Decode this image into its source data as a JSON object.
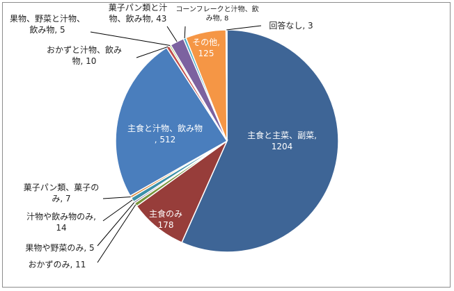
{
  "chart_data": {
    "type": "pie",
    "title": "",
    "categories": [
      "主食と主菜、副菜",
      "主食のみ",
      "おかずのみ",
      "果物や野菜のみ",
      "汁物や飲み物のみ",
      "菓子パン類、菓子のみ",
      "主食と汁物、飲み物",
      "おかずと汁物、飲み物",
      "果物、野菜と汁物、飲み物",
      "菓子パン類と汁物、飲み物",
      "コーンフレークと汁物、飲み物",
      "その他",
      "回答なし"
    ],
    "values": [
      1204,
      178,
      11,
      5,
      14,
      7,
      512,
      10,
      5,
      43,
      8,
      125,
      3
    ],
    "colors": [
      "#3e6596",
      "#973d3a",
      "#78953c",
      "#624b7e",
      "#3b90a8",
      "#d8863a",
      "#4a7ebd",
      "#c04f4c",
      "#98b957",
      "#7c62a0",
      "#4babc6",
      "#f59645",
      "#8aa8d4"
    ],
    "data_labels": [
      {
        "lines": [
          "主食と主菜、副菜,",
          "1204"
        ]
      },
      {
        "lines": [
          "主食のみ",
          "178"
        ]
      },
      {
        "lines": [
          "おかずのみ, 11"
        ]
      },
      {
        "lines": [
          "果物や野菜のみ, 5"
        ]
      },
      {
        "lines": [
          "汁物や飲み物のみ,",
          "14"
        ]
      },
      {
        "lines": [
          "菓子パン類、菓子の",
          "み, 7"
        ]
      },
      {
        "lines": [
          "主食と汁物、飲み物",
          ", 512"
        ]
      },
      {
        "lines": [
          "おかずと汁物、飲み",
          "物, 10"
        ]
      },
      {
        "lines": [
          "果物、野菜と汁物、",
          "飲み物, 5"
        ]
      },
      {
        "lines": [
          "菓子パン類と汁",
          "物、飲み物, 43"
        ]
      },
      {
        "lines": [
          "コーンフレークと汁物、飲",
          "み物, 8"
        ]
      },
      {
        "lines": [
          "その他,",
          "125"
        ]
      },
      {
        "lines": [
          "回答なし, 3"
        ]
      }
    ],
    "legend": "none",
    "grid": false
  }
}
